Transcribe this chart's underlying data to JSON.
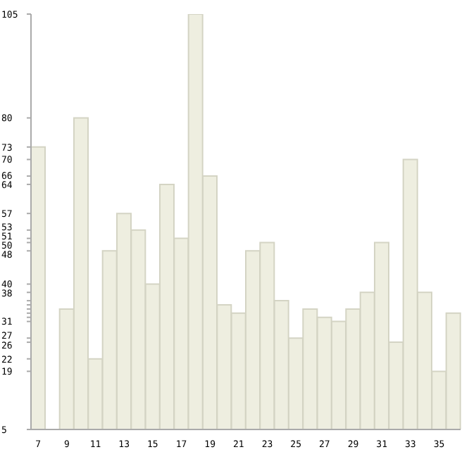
{
  "chart_data": {
    "type": "bar",
    "categories": [
      "7",
      null,
      "9",
      null,
      "11",
      null,
      "13",
      null,
      "15",
      null,
      "17",
      null,
      "19",
      null,
      "21",
      null,
      "23",
      null,
      "25",
      null,
      "27",
      null,
      "29",
      null,
      "31",
      null,
      "33",
      null,
      "35",
      null
    ],
    "values": [
      73,
      5,
      34,
      80,
      22,
      48,
      57,
      53,
      40,
      64,
      51,
      105,
      66,
      35,
      33,
      48,
      50,
      36,
      27,
      34,
      32,
      31,
      34,
      38,
      50,
      26,
      70,
      38,
      19,
      33
    ],
    "color": "#eeeee0",
    "ylim": [
      5,
      105
    ],
    "yticks": [
      5,
      19,
      22,
      26,
      27,
      31,
      {
        "value": 32,
        "label": null
      },
      {
        "value": 33,
        "label": null
      },
      {
        "value": 34,
        "label": null
      },
      {
        "value": 35,
        "label": null
      },
      {
        "value": 36,
        "label": null
      },
      38,
      40,
      48,
      50,
      51,
      53,
      57,
      64,
      66,
      70,
      73,
      80,
      105
    ],
    "grid": false
  }
}
